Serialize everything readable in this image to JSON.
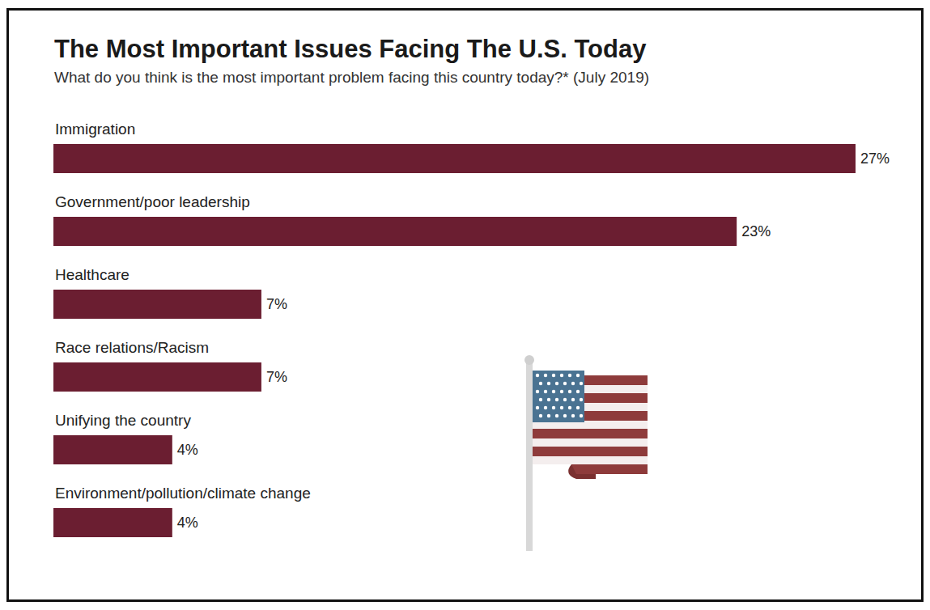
{
  "chart_data": {
    "type": "bar",
    "title": "The Most Important Issues Facing The U.S. Today",
    "subtitle": "What do you think is the most important problem facing this country today?* (July 2019)",
    "categories": [
      "Immigration",
      "Government/poor leadership",
      "Healthcare",
      "Race relations/Racism",
      "Unifying the country",
      "Environment/pollution/climate change"
    ],
    "values": [
      27,
      23,
      7,
      7,
      4,
      4
    ],
    "value_labels": [
      "27%",
      "23%",
      "7%",
      "7%",
      "4%",
      "4%"
    ],
    "color": "#6b1e31",
    "orientation": "horizontal",
    "xlim": [
      0,
      27
    ],
    "data_labels": true,
    "tick_labels": false,
    "grid": false
  }
}
